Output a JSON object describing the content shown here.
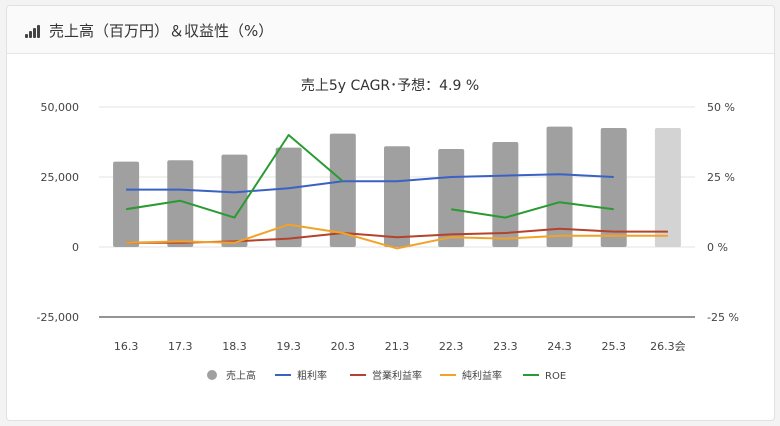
{
  "header": {
    "title": "売上高（百万円）＆収益性（%）",
    "icon": "signal-bars-icon"
  },
  "chart_data": {
    "type": "bar",
    "title": "売上5y CAGR･予想：4.9 %",
    "categories": [
      "16.3",
      "17.3",
      "18.3",
      "19.3",
      "20.3",
      "21.3",
      "22.3",
      "23.3",
      "24.3",
      "25.3",
      "26.3会"
    ],
    "left_axis": {
      "ticks": [
        "50,000",
        "25,000",
        "0",
        "-25,000"
      ],
      "ylim": [
        -25000,
        50000
      ]
    },
    "right_axis": {
      "ticks": [
        "50 %",
        "25 %",
        "0 %",
        "-25 %"
      ],
      "ylim": [
        -25,
        50
      ]
    },
    "bar_series": {
      "name": "売上高",
      "values": [
        30500,
        31000,
        33000,
        35500,
        40500,
        36000,
        35000,
        37500,
        43000,
        42500,
        42500
      ],
      "color": "#a0a0a0",
      "forecast_color": "#d3d3d3",
      "forecast_index": 10
    },
    "line_series": [
      {
        "name": "粗利率",
        "color": "#3a62c4",
        "values": [
          20.5,
          20.5,
          19.5,
          21,
          23.5,
          23.5,
          25,
          25.5,
          26,
          25,
          null
        ]
      },
      {
        "name": "営業利益率",
        "color": "#b5422a",
        "values": [
          1.5,
          1.5,
          2,
          3,
          5,
          3.5,
          4.5,
          5,
          6.5,
          5.5,
          5.5
        ]
      },
      {
        "name": "純利益率",
        "color": "#f2a227",
        "values": [
          1.5,
          2,
          1.5,
          8,
          5,
          -0.5,
          3.5,
          3,
          4,
          4,
          4
        ]
      },
      {
        "name": "ROE",
        "color": "#2a9a33",
        "values": [
          13.5,
          16.5,
          10.5,
          40,
          23.5,
          null,
          13.5,
          10.5,
          16,
          13.5,
          null
        ]
      }
    ],
    "legend": [
      {
        "label": "売上高",
        "marker": "circle",
        "color": "#a0a0a0"
      },
      {
        "label": "粗利率",
        "marker": "line",
        "color": "#3a62c4"
      },
      {
        "label": "営業利益率",
        "marker": "line",
        "color": "#b5422a"
      },
      {
        "label": "純利益率",
        "marker": "line",
        "color": "#f2a227"
      },
      {
        "label": "ROE",
        "marker": "line",
        "color": "#2a9a33"
      }
    ],
    "legend_position": "bottom",
    "grid": true
  }
}
